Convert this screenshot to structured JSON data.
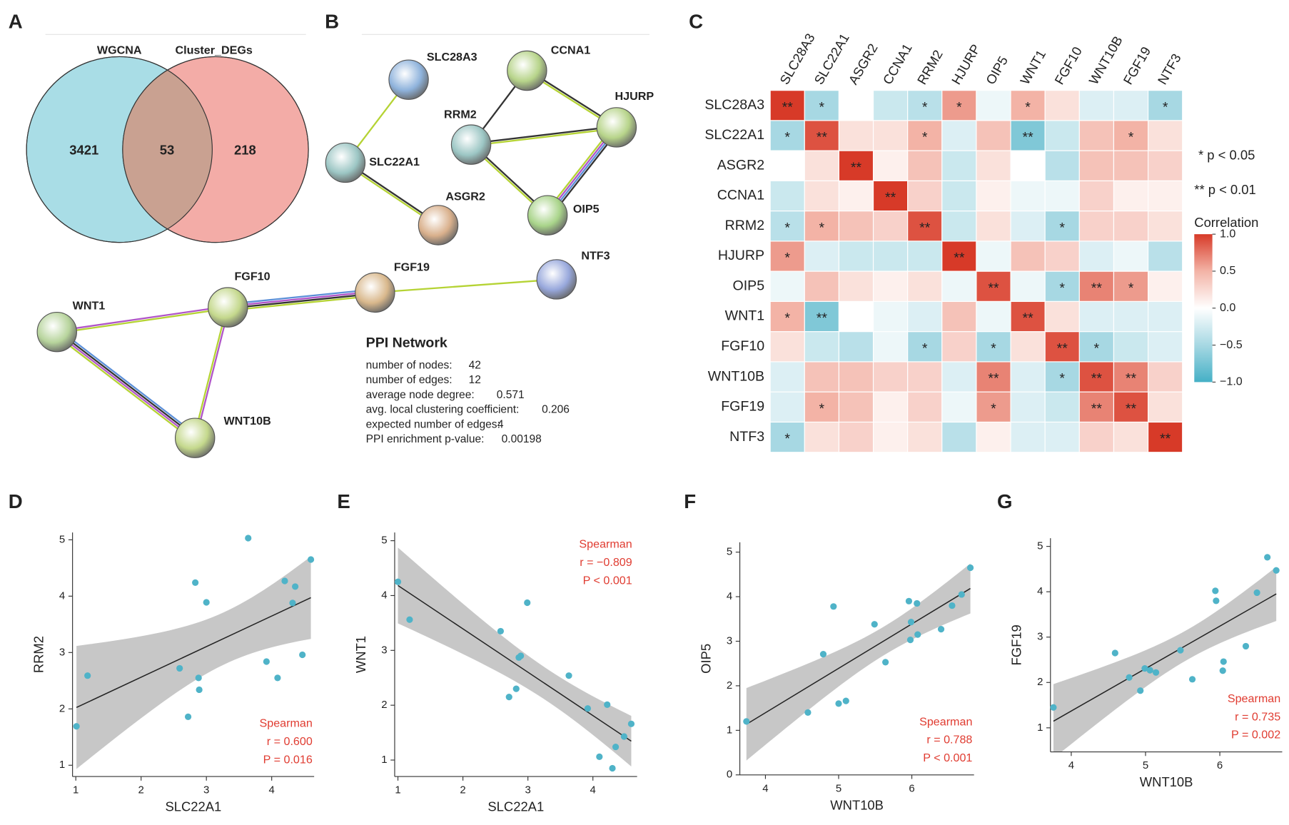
{
  "chart_data": [
    {
      "type": "venn",
      "panel": "A",
      "sets": [
        "WGCNA",
        "Cluster_DEGs"
      ],
      "values": [
        3421,
        53,
        218
      ],
      "colors": [
        "#a9dde6",
        "#f3aca7",
        "#c9a191"
      ]
    },
    {
      "type": "network",
      "panel": "B",
      "title": "PPI Network",
      "nodes": [
        {
          "label": "SLC28A3",
          "color": "#8fb3dc"
        },
        {
          "label": "CCNA1",
          "color": "#b7d48a"
        },
        {
          "label": "HJURP",
          "color": "#b7d48a"
        },
        {
          "label": "RRM2",
          "color": "#9cc6c4"
        },
        {
          "label": "SLC22A1",
          "color": "#9cc6c4"
        },
        {
          "label": "ASGR2",
          "color": "#d9b08c"
        },
        {
          "label": "OIP5",
          "color": "#a9d48a"
        },
        {
          "label": "NTF3",
          "color": "#98a8dc"
        },
        {
          "label": "FGF19",
          "color": "#d9b88c"
        },
        {
          "label": "FGF10",
          "color": "#c4d88c"
        },
        {
          "label": "WNT1",
          "color": "#b7d49c"
        },
        {
          "label": "WNT10B",
          "color": "#c4d88c"
        }
      ],
      "stats": [
        {
          "label": "number of nodes:",
          "value": 42
        },
        {
          "label": "number of edges:",
          "value": 12
        },
        {
          "label": "average node degree:",
          "value": 0.571
        },
        {
          "label": "avg. local clustering coefficient:",
          "value": 0.206
        },
        {
          "label": "expected number of edges:",
          "value": 4
        },
        {
          "label": "PPI enrichment p-value:",
          "value": 0.00198
        }
      ]
    },
    {
      "type": "heatmap",
      "panel": "C",
      "categories": [
        "SLC28A3",
        "SLC22A1",
        "ASGR2",
        "CCNA1",
        "RRM2",
        "HJURP",
        "OIP5",
        "WNT1",
        "FGF10",
        "WNT10B",
        "FGF19",
        "NTF3"
      ],
      "values": [
        [
          1,
          -0.5,
          0,
          -0.3,
          -0.4,
          0.6,
          -0.1,
          0.5,
          0.2,
          -0.2,
          -0.2,
          -0.5
        ],
        [
          -0.5,
          0.9,
          0.2,
          0.2,
          0.5,
          -0.2,
          0.4,
          -0.7,
          -0.3,
          0.4,
          0.5,
          0.2
        ],
        [
          0,
          0.2,
          1,
          0.1,
          0.4,
          -0.3,
          0.2,
          0,
          -0.4,
          0.4,
          0.4,
          0.3
        ],
        [
          -0.3,
          0.2,
          0.1,
          1,
          0.3,
          -0.3,
          0.1,
          -0.1,
          -0.1,
          0.3,
          0.1,
          0.1
        ],
        [
          -0.4,
          0.5,
          0.4,
          0.3,
          0.9,
          -0.3,
          0.2,
          -0.2,
          -0.5,
          0.3,
          0.3,
          0.2
        ],
        [
          0.6,
          -0.2,
          -0.3,
          -0.3,
          -0.3,
          1,
          -0.1,
          0.4,
          0.3,
          -0.2,
          -0.1,
          -0.4
        ],
        [
          -0.1,
          0.4,
          0.2,
          0.1,
          0.2,
          -0.1,
          0.9,
          -0.1,
          -0.5,
          0.7,
          0.6,
          0.1
        ],
        [
          0.5,
          -0.7,
          0,
          -0.1,
          -0.2,
          0.4,
          -0.1,
          0.9,
          0.2,
          -0.2,
          -0.2,
          -0.2
        ],
        [
          0.2,
          -0.3,
          -0.4,
          -0.1,
          -0.5,
          0.3,
          -0.5,
          0.2,
          0.9,
          -0.5,
          -0.3,
          -0.2
        ],
        [
          -0.2,
          0.4,
          0.4,
          0.3,
          0.3,
          -0.2,
          0.7,
          -0.2,
          -0.5,
          0.9,
          0.7,
          0.3
        ],
        [
          -0.2,
          0.5,
          0.4,
          0.1,
          0.3,
          -0.1,
          0.6,
          -0.2,
          -0.3,
          0.7,
          0.9,
          0.2
        ],
        [
          -0.5,
          0.2,
          0.3,
          0.1,
          0.2,
          -0.4,
          0.1,
          -0.2,
          -0.2,
          0.3,
          0.2,
          1
        ]
      ],
      "stars": [
        [
          "**",
          "*",
          null,
          null,
          "*",
          "*",
          null,
          "*",
          null,
          null,
          null,
          "*"
        ],
        [
          "*",
          "**",
          null,
          null,
          "*",
          null,
          null,
          "**",
          null,
          null,
          "*",
          null
        ],
        [
          null,
          null,
          "**",
          null,
          null,
          null,
          null,
          null,
          null,
          null,
          null,
          null
        ],
        [
          null,
          null,
          null,
          "**",
          null,
          null,
          null,
          null,
          null,
          null,
          null,
          null
        ],
        [
          "*",
          "*",
          null,
          null,
          "**",
          null,
          null,
          null,
          "*",
          null,
          null,
          null
        ],
        [
          "*",
          null,
          null,
          null,
          null,
          "**",
          null,
          null,
          null,
          null,
          null,
          null
        ],
        [
          null,
          null,
          null,
          null,
          null,
          null,
          "**",
          null,
          "*",
          "**",
          "*",
          null
        ],
        [
          "*",
          "**",
          null,
          null,
          null,
          null,
          null,
          "**",
          null,
          null,
          null,
          null
        ],
        [
          null,
          null,
          null,
          null,
          "*",
          null,
          "*",
          null,
          "**",
          "*",
          null,
          null
        ],
        [
          null,
          null,
          null,
          null,
          null,
          null,
          "**",
          null,
          "*",
          "**",
          "**",
          null
        ],
        [
          null,
          "*",
          null,
          null,
          null,
          null,
          "*",
          null,
          null,
          "**",
          "**",
          null
        ],
        [
          "*",
          null,
          null,
          null,
          null,
          null,
          null,
          null,
          null,
          null,
          null,
          "**"
        ]
      ],
      "notes": [
        "* p < 0.05",
        "** p < 0.01"
      ],
      "legend_title": "Correlation",
      "colorbar_lim": [
        -1,
        1
      ],
      "colorbar_ticks": [
        {
          "value": 1,
          "label": "1.0"
        },
        {
          "value": 0.5,
          "label": "0.5"
        },
        {
          "value": 0,
          "label": "0.0"
        },
        {
          "value": -0.5,
          "label": "−0.5"
        },
        {
          "value": -1,
          "label": "−1.0"
        }
      ]
    },
    {
      "type": "scatter",
      "panel": "D",
      "xlabel": "SLC22A1",
      "ylabel": "RRM2",
      "color": "#4fb3c8",
      "x": [
        1.01,
        1.18,
        2.59,
        2.72,
        2.83,
        2.88,
        2.89,
        3.0,
        3.64,
        3.92,
        4.09,
        4.2,
        4.36,
        4.32,
        4.47,
        4.6
      ],
      "values": [
        1.69,
        2.59,
        2.72,
        1.86,
        4.24,
        2.55,
        2.34,
        3.89,
        5.03,
        2.84,
        2.55,
        4.27,
        4.17,
        3.88,
        2.96,
        4.65
      ],
      "xlim": [
        0.95,
        4.65
      ],
      "ylim": [
        0.8,
        5.13
      ],
      "xticks": [
        1,
        2,
        3,
        4
      ],
      "yticks": [
        1,
        2,
        3,
        4,
        5
      ],
      "annotations": [
        "Spearman",
        "r = 0.600",
        "P = 0.016"
      ]
    },
    {
      "type": "scatter",
      "panel": "E",
      "xlabel": "SLC22A1",
      "ylabel": "WNT1",
      "color": "#4fb3c8",
      "x": [
        1.0,
        1.18,
        2.58,
        2.71,
        2.82,
        2.86,
        2.89,
        2.99,
        3.63,
        3.92,
        4.1,
        4.22,
        4.3,
        4.35,
        4.48,
        4.59
      ],
      "values": [
        4.25,
        3.56,
        3.35,
        2.15,
        2.3,
        2.87,
        2.9,
        3.87,
        2.54,
        1.94,
        1.06,
        2.01,
        0.85,
        1.24,
        1.43,
        1.66
      ],
      "xlim": [
        0.95,
        4.68
      ],
      "ylim": [
        0.7,
        5.15
      ],
      "xticks": [
        1,
        2,
        3,
        4
      ],
      "yticks": [
        1,
        2,
        3,
        4,
        5
      ],
      "annotations": [
        "Spearman",
        "r = −0.809",
        "P < 0.001"
      ]
    },
    {
      "type": "scatter",
      "panel": "F",
      "xlabel": "WNT10B",
      "ylabel": "OIP5",
      "color": "#4fb3c8",
      "x": [
        3.74,
        4.58,
        4.79,
        4.93,
        5.0,
        5.1,
        5.49,
        5.64,
        5.96,
        5.98,
        5.99,
        6.07,
        6.08,
        6.4,
        6.55,
        6.68,
        6.8
      ],
      "values": [
        1.2,
        1.4,
        2.71,
        3.78,
        1.6,
        1.66,
        3.38,
        2.53,
        3.9,
        3.03,
        3.43,
        3.85,
        3.15,
        3.27,
        3.8,
        4.05,
        4.65
      ],
      "xlim": [
        3.65,
        6.85
      ],
      "ylim": [
        0,
        5.22
      ],
      "xticks": [
        4,
        5,
        6
      ],
      "yticks": [
        0,
        1,
        2,
        3,
        4,
        5
      ],
      "annotations": [
        "Spearman",
        "r = 0.788",
        "P < 0.001"
      ]
    },
    {
      "type": "scatter",
      "panel": "G",
      "xlabel": "WNT10B",
      "ylabel": "FGF19",
      "color": "#4fb3c8",
      "x": [
        3.76,
        4.59,
        4.78,
        4.93,
        4.99,
        5.06,
        5.14,
        5.47,
        5.63,
        5.94,
        5.95,
        6.04,
        6.05,
        6.35,
        6.5,
        6.64,
        6.76
      ],
      "values": [
        1.45,
        2.65,
        2.11,
        1.82,
        2.31,
        2.27,
        2.22,
        2.71,
        2.07,
        4.02,
        3.8,
        2.26,
        2.46,
        2.8,
        3.98,
        4.76,
        4.47
      ],
      "xlim": [
        3.72,
        6.84
      ],
      "ylim": [
        0.47,
        5.18
      ],
      "xticks": [
        4,
        5,
        6
      ],
      "yticks": [
        1,
        2,
        3,
        4,
        5
      ],
      "annotations": [
        "Spearman",
        "r = 0.735",
        "P = 0.002"
      ]
    }
  ]
}
